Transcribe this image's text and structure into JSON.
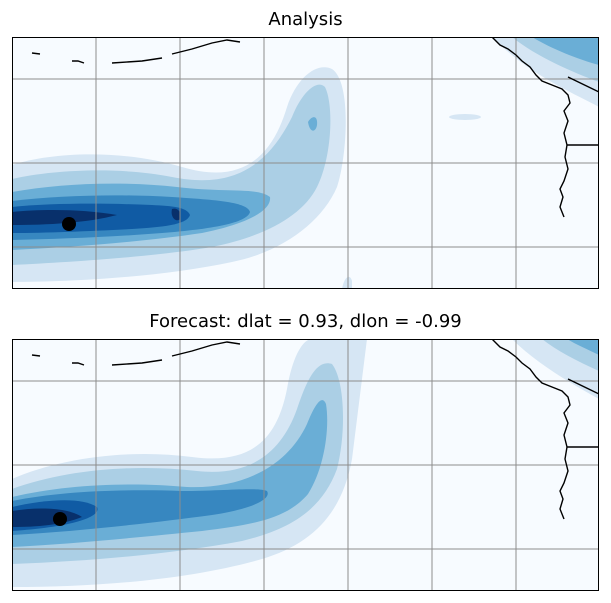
{
  "panels": [
    {
      "id": "analysis",
      "title": "Analysis",
      "marker": {
        "lon_frac": 0.098,
        "lat_frac": 0.74
      }
    },
    {
      "id": "forecast",
      "title": "Forecast: dlat = 0.93, dlon = -0.99",
      "marker": {
        "lon_frac": 0.083,
        "lat_frac": 0.715
      }
    }
  ],
  "colors": {
    "background": "#f7fbff",
    "levels": [
      "#d6e6f4",
      "#abcfe5",
      "#6aaed6",
      "#3787c0",
      "#105ba4",
      "#08306b"
    ],
    "grid": "#8c8c8c",
    "coast": "#000000",
    "marker": "#000000"
  }
}
